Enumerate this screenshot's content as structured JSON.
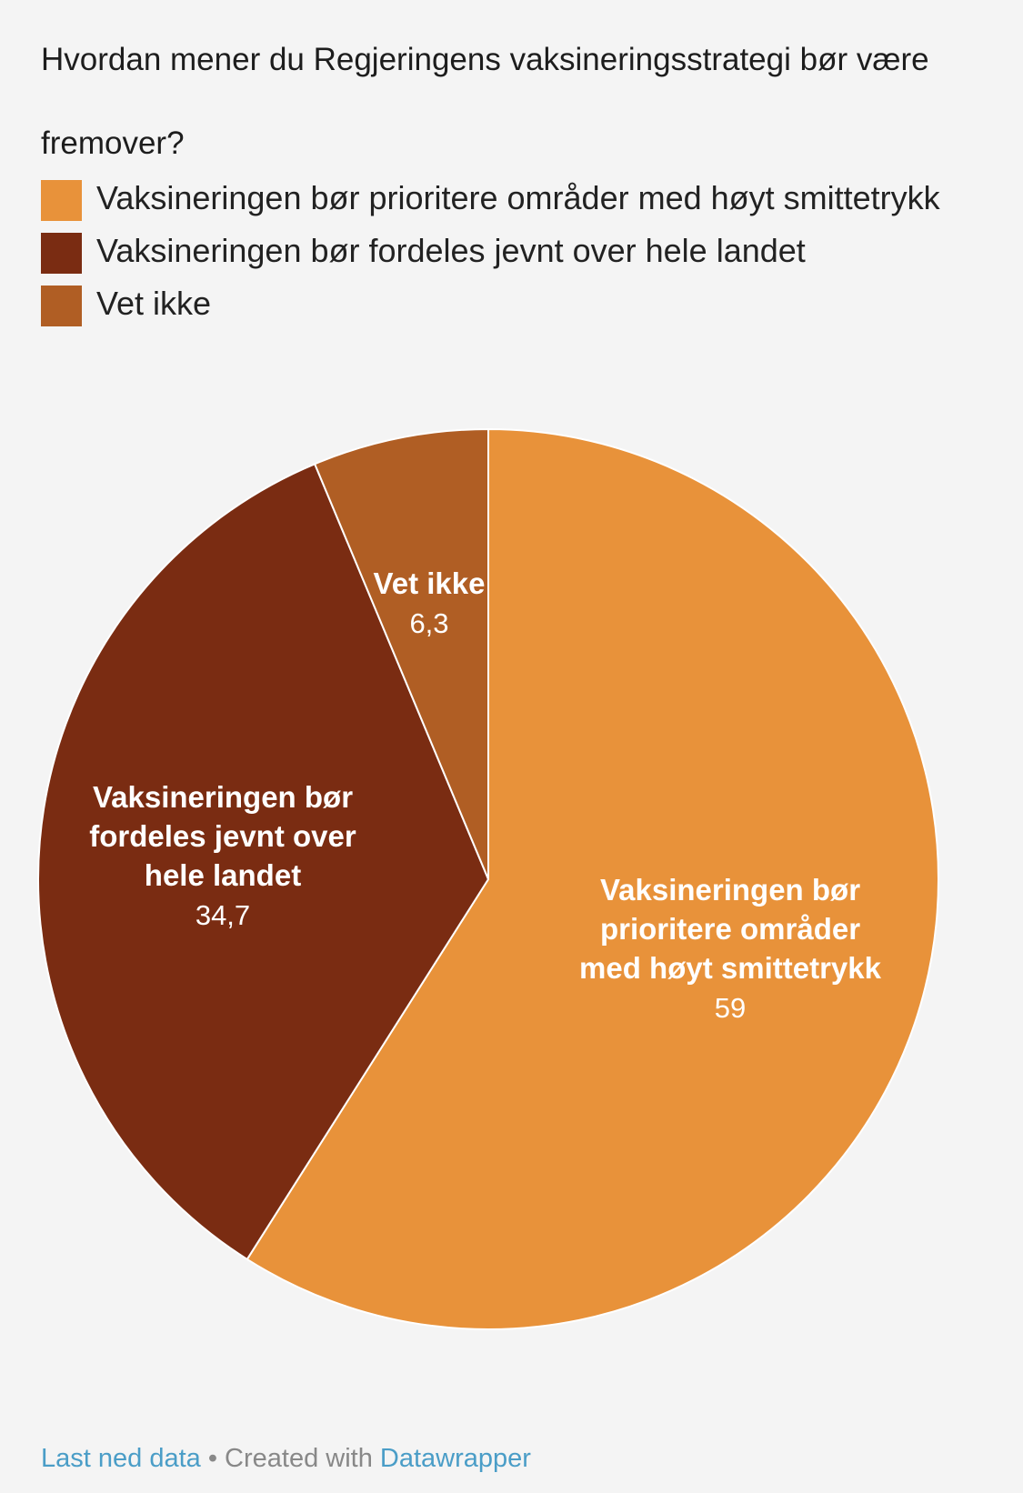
{
  "title": "Hvordan mener du Regjeringens vaksineringsstrategi bør være fremover?",
  "legend": [
    {
      "label": "Vaksineringen bør prioritere områder med høyt smittetrykk",
      "color": "#e8923a"
    },
    {
      "label": "Vaksineringen bør fordeles jevnt over hele landet",
      "color": "#7a2c12"
    },
    {
      "label": "Vet ikke",
      "color": "#b05e24"
    }
  ],
  "chart_data": {
    "type": "pie",
    "title": "Hvordan mener du Regjeringens vaksineringsstrategi bør være fremover?",
    "slices": [
      {
        "label": "Vaksineringen bør prioritere områder med høyt smittetrykk",
        "label_lines": [
          "Vaksineringen bør",
          "prioritere områder",
          "med høyt smittetrykk"
        ],
        "value": 59,
        "value_label": "59",
        "color": "#e8923a"
      },
      {
        "label": "Vaksineringen bør fordeles jevnt over hele landet",
        "label_lines": [
          "Vaksineringen bør",
          "fordeles jevnt over",
          "hele landet"
        ],
        "value": 34.7,
        "value_label": "34,7",
        "color": "#7a2c12"
      },
      {
        "label": "Vet ikke",
        "label_lines": [
          "Vet ikke"
        ],
        "value": 6.3,
        "value_label": "6,3",
        "color": "#b05e24"
      }
    ],
    "start_angle": "12 o'clock",
    "direction": "clockwise",
    "legend_position": "top-left"
  },
  "footer": {
    "download_label": "Last ned data",
    "separator": "•",
    "created_with": "Created with",
    "tool_name": "Datawrapper"
  }
}
